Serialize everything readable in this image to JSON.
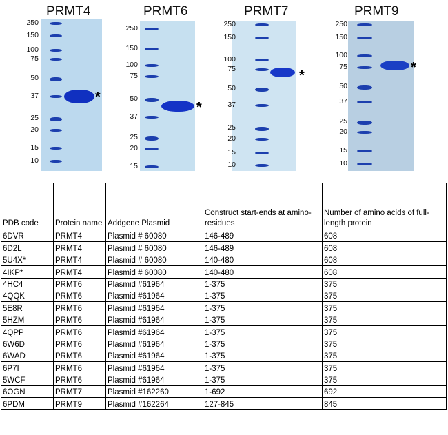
{
  "figure": {
    "gels": [
      {
        "title": "PRMT4",
        "markers": [
          "250",
          "150",
          "100",
          "75",
          "50",
          "37",
          "25",
          "20",
          "15",
          "10"
        ],
        "asterisk": "*"
      },
      {
        "title": "PRMT6",
        "markers": [
          "250",
          "150",
          "100",
          "75",
          "50",
          "37",
          "25",
          "20",
          "15"
        ],
        "asterisk": "*"
      },
      {
        "title": "PRMT7",
        "markers": [
          "250",
          "150",
          "100",
          "75",
          "50",
          "37",
          "25",
          "20",
          "15",
          "10"
        ],
        "asterisk": "*"
      },
      {
        "title": "PRMT9",
        "markers": [
          "250",
          "150",
          "100",
          "75",
          "50",
          "37",
          "25",
          "20",
          "15",
          "10"
        ],
        "asterisk": "*"
      }
    ]
  },
  "table": {
    "headers": [
      "PDB code",
      "Protein name",
      "Addgene Plasmid",
      "Construct start-ends at amino-residues",
      "Number of amino acids of full-length protein"
    ],
    "rows": [
      [
        "6DVR",
        "PRMT4",
        "Plasmid # 60080",
        "146-489",
        "608"
      ],
      [
        "6D2L",
        "PRMT4",
        "Plasmid # 60080",
        "146-489",
        "608"
      ],
      [
        "5U4X*",
        "PRMT4",
        "Plasmid # 60080",
        "140-480",
        "608"
      ],
      [
        "4IKP*",
        "PRMT4",
        "Plasmid # 60080",
        "140-480",
        "608"
      ],
      [
        "4HC4",
        "PRMT6",
        "Plasmid #61964",
        "1-375",
        "375"
      ],
      [
        "4QQK",
        "PRMT6",
        "Plasmid #61964",
        "1-375",
        "375"
      ],
      [
        "5E8R",
        "PRMT6",
        "Plasmid #61964",
        "1-375",
        "375"
      ],
      [
        "5HZM",
        "PRMT6",
        "Plasmid #61964",
        "1-375",
        "375"
      ],
      [
        "4QPP",
        "PRMT6",
        "Plasmid #61964",
        "1-375",
        "375"
      ],
      [
        "6W6D",
        "PRMT6",
        "Plasmid #61964",
        "1-375",
        "375"
      ],
      [
        "6WAD",
        "PRMT6",
        "Plasmid #61964",
        "1-375",
        "375"
      ],
      [
        "6P7I",
        "PRMT6",
        "Plasmid #61964",
        "1-375",
        "375"
      ],
      [
        "5WCF",
        "PRMT6",
        "Plasmid #61964",
        "1-375",
        "375"
      ],
      [
        "6OGN",
        "PRMT7",
        "Plasmid #162260",
        "1-692",
        "692"
      ],
      [
        "6PDM",
        "PRMT9",
        "Plasmid #162264",
        "127-845",
        "845"
      ]
    ]
  }
}
